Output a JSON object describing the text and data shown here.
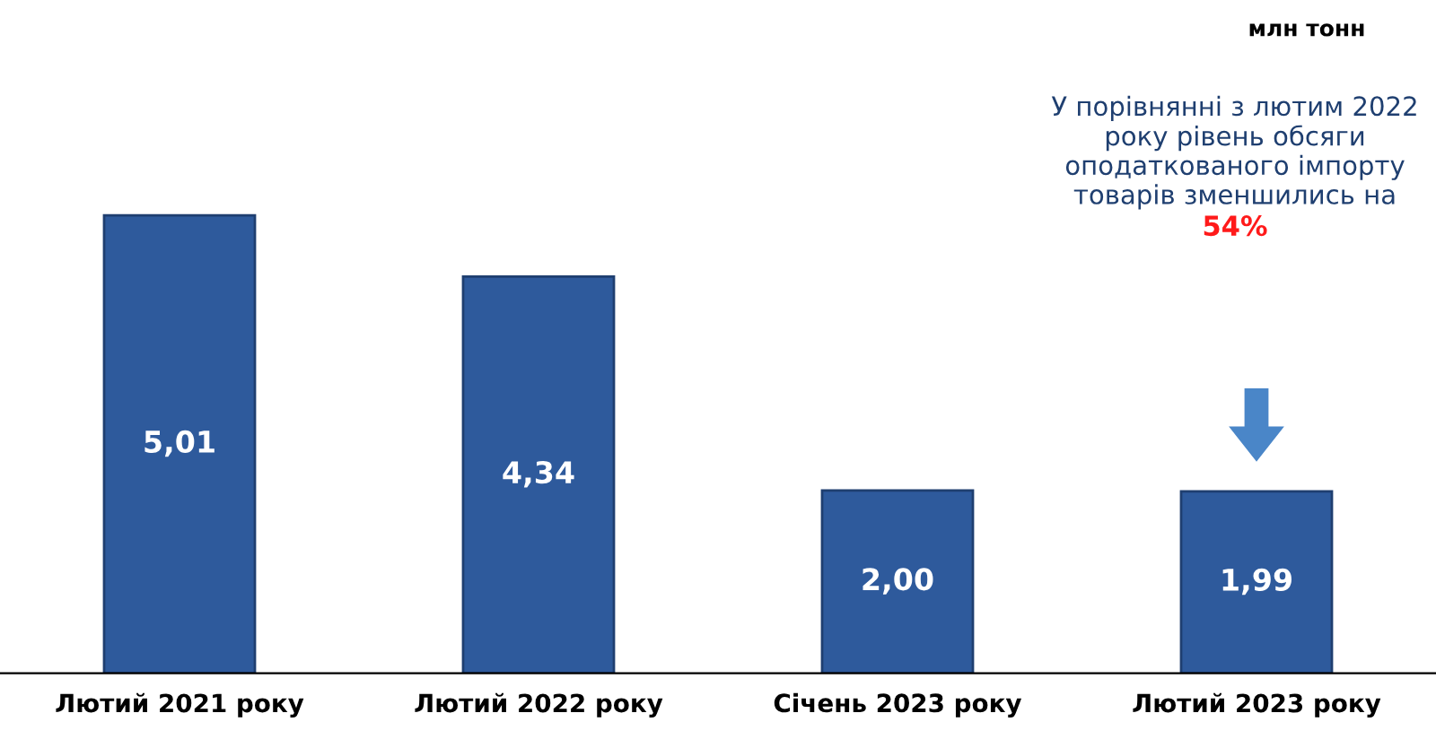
{
  "chart_data": {
    "type": "bar",
    "categories": [
      "Лютий 2021 року",
      "Лютий 2022 року",
      "Січень 2023 року",
      "Лютий 2023 року"
    ],
    "values": [
      5.01,
      4.34,
      2.0,
      1.99
    ],
    "value_labels": [
      "5,01",
      "4,34",
      "2,00",
      "1,99"
    ],
    "color": "#2e5a9c",
    "annotations": [
      "млн тонн",
      "У порівнянні з лютим 2022 року рівень обсяги оподаткованого імпорту товарів зменшились на",
      "54%"
    ],
    "grid": false
  }
}
